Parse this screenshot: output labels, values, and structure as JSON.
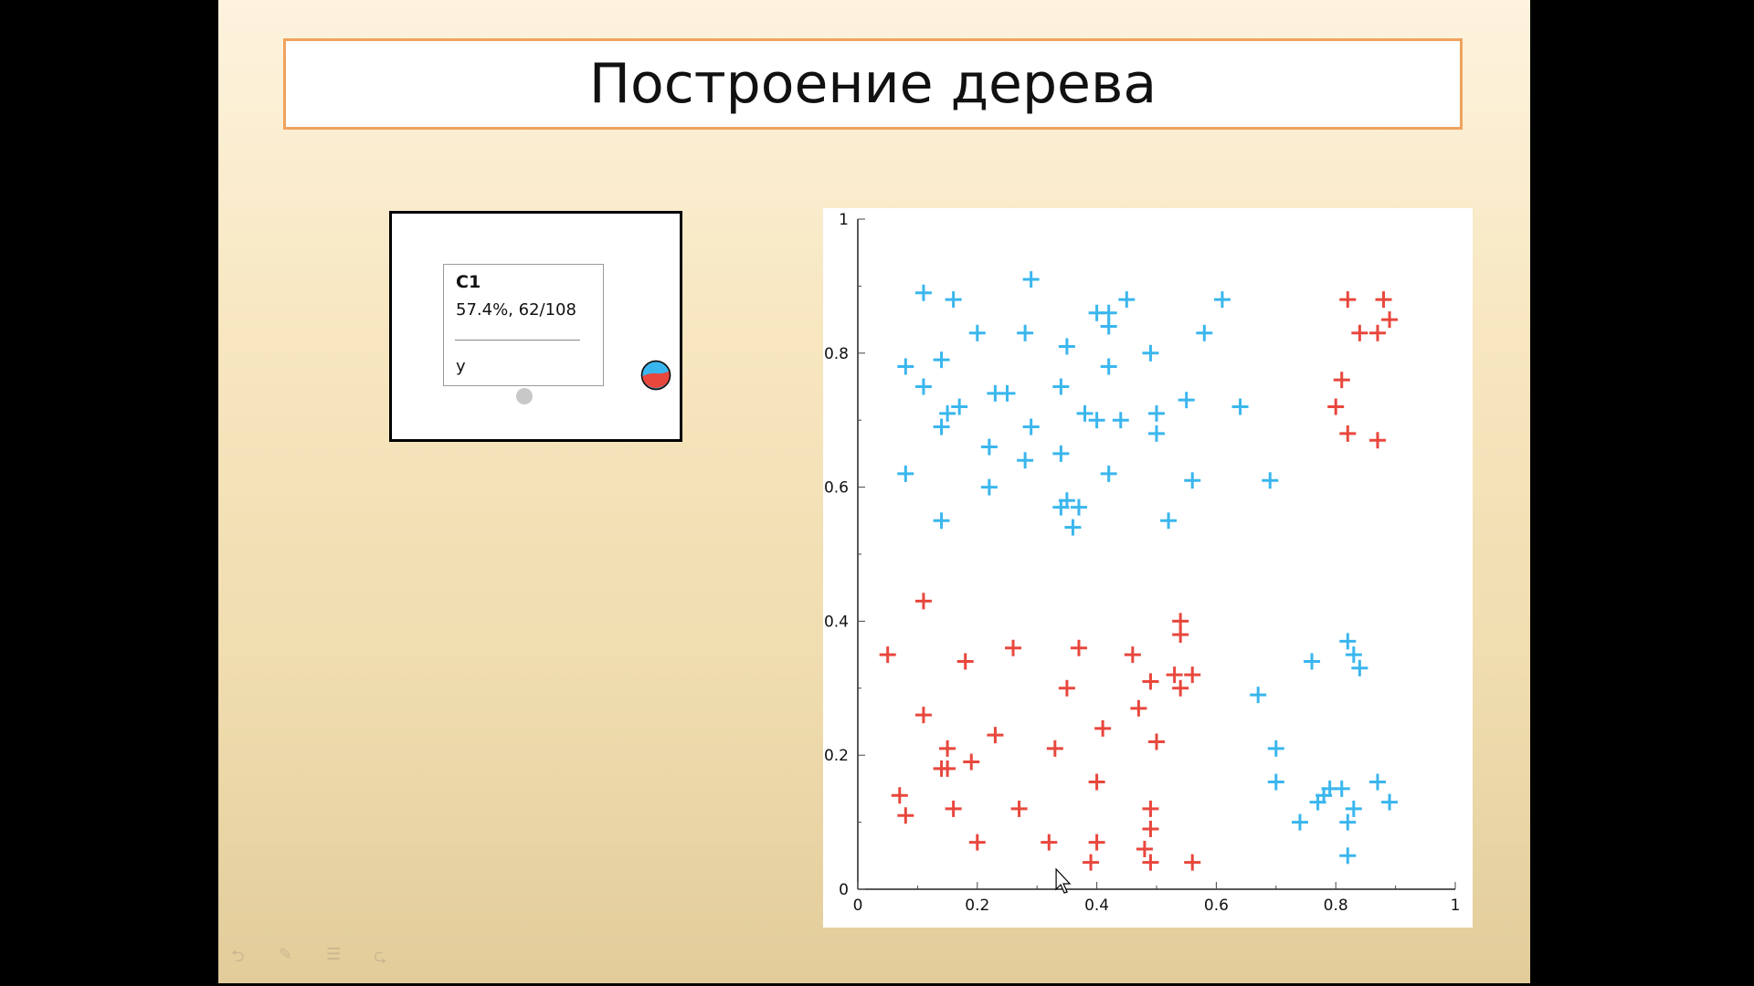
{
  "slide": {
    "title": "Построение дерева"
  },
  "tree": {
    "node": {
      "name": "C1",
      "stats": "57.4%, 62/108",
      "split_var": "y"
    }
  },
  "colors": {
    "class_blue": "#3ab6ee",
    "class_red": "#e8473d",
    "title_border": "#f0a25d"
  },
  "toolbar": {
    "icons": [
      "back-arrow-icon",
      "pen-icon",
      "menu-icon",
      "forward-arrow-icon"
    ]
  },
  "chart_data": {
    "type": "scatter",
    "xlim": [
      0,
      1
    ],
    "ylim": [
      0,
      1
    ],
    "x_ticks": [
      "0",
      "0.2",
      "0.4",
      "0.6",
      "0.8",
      "1"
    ],
    "y_ticks": [
      "0",
      "0.2",
      "0.4",
      "0.6",
      "0.8",
      "1"
    ],
    "grid": false,
    "series": [
      {
        "color": "#3ab6ee",
        "points": [
          [
            0.11,
            0.89
          ],
          [
            0.16,
            0.88
          ],
          [
            0.29,
            0.91
          ],
          [
            0.4,
            0.86
          ],
          [
            0.42,
            0.86
          ],
          [
            0.45,
            0.88
          ],
          [
            0.42,
            0.84
          ],
          [
            0.61,
            0.88
          ],
          [
            0.2,
            0.83
          ],
          [
            0.28,
            0.83
          ],
          [
            0.35,
            0.81
          ],
          [
            0.58,
            0.83
          ],
          [
            0.49,
            0.8
          ],
          [
            0.08,
            0.78
          ],
          [
            0.14,
            0.79
          ],
          [
            0.42,
            0.78
          ],
          [
            0.11,
            0.75
          ],
          [
            0.23,
            0.74
          ],
          [
            0.25,
            0.74
          ],
          [
            0.34,
            0.75
          ],
          [
            0.15,
            0.71
          ],
          [
            0.17,
            0.72
          ],
          [
            0.14,
            0.69
          ],
          [
            0.38,
            0.71
          ],
          [
            0.4,
            0.7
          ],
          [
            0.44,
            0.7
          ],
          [
            0.5,
            0.71
          ],
          [
            0.55,
            0.73
          ],
          [
            0.64,
            0.72
          ],
          [
            0.29,
            0.69
          ],
          [
            0.5,
            0.68
          ],
          [
            0.22,
            0.66
          ],
          [
            0.28,
            0.64
          ],
          [
            0.34,
            0.65
          ],
          [
            0.08,
            0.62
          ],
          [
            0.22,
            0.6
          ],
          [
            0.42,
            0.62
          ],
          [
            0.56,
            0.61
          ],
          [
            0.69,
            0.61
          ],
          [
            0.34,
            0.57
          ],
          [
            0.35,
            0.58
          ],
          [
            0.37,
            0.57
          ],
          [
            0.14,
            0.55
          ],
          [
            0.36,
            0.54
          ],
          [
            0.52,
            0.55
          ],
          [
            0.82,
            0.37
          ],
          [
            0.83,
            0.35
          ],
          [
            0.84,
            0.33
          ],
          [
            0.76,
            0.34
          ],
          [
            0.67,
            0.29
          ],
          [
            0.7,
            0.21
          ],
          [
            0.7,
            0.16
          ],
          [
            0.77,
            0.13
          ],
          [
            0.78,
            0.14
          ],
          [
            0.79,
            0.15
          ],
          [
            0.81,
            0.15
          ],
          [
            0.87,
            0.16
          ],
          [
            0.83,
            0.12
          ],
          [
            0.82,
            0.1
          ],
          [
            0.89,
            0.13
          ],
          [
            0.74,
            0.1
          ],
          [
            0.82,
            0.05
          ]
        ]
      },
      {
        "color": "#e8473d",
        "points": [
          [
            0.82,
            0.88
          ],
          [
            0.88,
            0.88
          ],
          [
            0.89,
            0.85
          ],
          [
            0.84,
            0.83
          ],
          [
            0.87,
            0.83
          ],
          [
            0.81,
            0.76
          ],
          [
            0.8,
            0.72
          ],
          [
            0.82,
            0.68
          ],
          [
            0.87,
            0.67
          ],
          [
            0.11,
            0.43
          ],
          [
            0.05,
            0.35
          ],
          [
            0.18,
            0.34
          ],
          [
            0.26,
            0.36
          ],
          [
            0.37,
            0.36
          ],
          [
            0.46,
            0.35
          ],
          [
            0.54,
            0.4
          ],
          [
            0.54,
            0.38
          ],
          [
            0.53,
            0.32
          ],
          [
            0.56,
            0.32
          ],
          [
            0.49,
            0.31
          ],
          [
            0.54,
            0.3
          ],
          [
            0.35,
            0.3
          ],
          [
            0.47,
            0.27
          ],
          [
            0.11,
            0.26
          ],
          [
            0.41,
            0.24
          ],
          [
            0.23,
            0.23
          ],
          [
            0.5,
            0.22
          ],
          [
            0.15,
            0.21
          ],
          [
            0.33,
            0.21
          ],
          [
            0.14,
            0.18
          ],
          [
            0.15,
            0.18
          ],
          [
            0.19,
            0.19
          ],
          [
            0.4,
            0.16
          ],
          [
            0.07,
            0.14
          ],
          [
            0.16,
            0.12
          ],
          [
            0.27,
            0.12
          ],
          [
            0.49,
            0.12
          ],
          [
            0.08,
            0.11
          ],
          [
            0.49,
            0.09
          ],
          [
            0.2,
            0.07
          ],
          [
            0.32,
            0.07
          ],
          [
            0.4,
            0.07
          ],
          [
            0.48,
            0.06
          ],
          [
            0.39,
            0.04
          ],
          [
            0.49,
            0.04
          ],
          [
            0.56,
            0.04
          ]
        ]
      }
    ]
  }
}
